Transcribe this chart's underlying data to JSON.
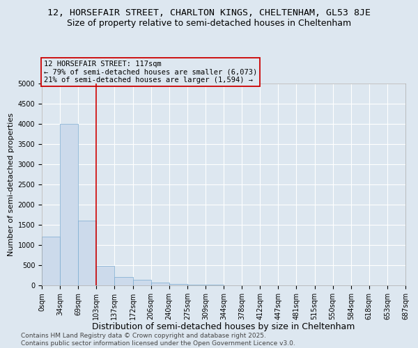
{
  "title": "12, HORSEFAIR STREET, CHARLTON KINGS, CHELTENHAM, GL53 8JE",
  "subtitle": "Size of property relative to semi-detached houses in Cheltenham",
  "xlabel": "Distribution of semi-detached houses by size in Cheltenham",
  "ylabel": "Number of semi-detached properties",
  "bar_values": [
    1200,
    4000,
    1600,
    480,
    200,
    140,
    70,
    40,
    20,
    10,
    5,
    3,
    2,
    1,
    0,
    0,
    0,
    0,
    0,
    0
  ],
  "x_labels": [
    "0sqm",
    "34sqm",
    "69sqm",
    "103sqm",
    "137sqm",
    "172sqm",
    "206sqm",
    "240sqm",
    "275sqm",
    "309sqm",
    "344sqm",
    "378sqm",
    "412sqm",
    "447sqm",
    "481sqm",
    "515sqm",
    "550sqm",
    "584sqm",
    "618sqm",
    "653sqm",
    "687sqm"
  ],
  "bar_color": "#ccdaeb",
  "bar_edge_color": "#7aaacf",
  "ylim": [
    0,
    5000
  ],
  "yticks": [
    0,
    500,
    1000,
    1500,
    2000,
    2500,
    3000,
    3500,
    4000,
    4500,
    5000
  ],
  "property_line_x": 3,
  "property_line_color": "#cc0000",
  "annotation_text": "12 HORSEFAIR STREET: 117sqm\n← 79% of semi-detached houses are smaller (6,073)\n21% of semi-detached houses are larger (1,594) →",
  "annotation_box_color": "#cc0000",
  "background_color": "#dde7f0",
  "grid_color": "#ffffff",
  "footer_text": "Contains HM Land Registry data © Crown copyright and database right 2025.\nContains public sector information licensed under the Open Government Licence v3.0.",
  "title_fontsize": 9.5,
  "subtitle_fontsize": 9,
  "xlabel_fontsize": 9,
  "ylabel_fontsize": 8,
  "tick_fontsize": 7,
  "footer_fontsize": 6.5
}
